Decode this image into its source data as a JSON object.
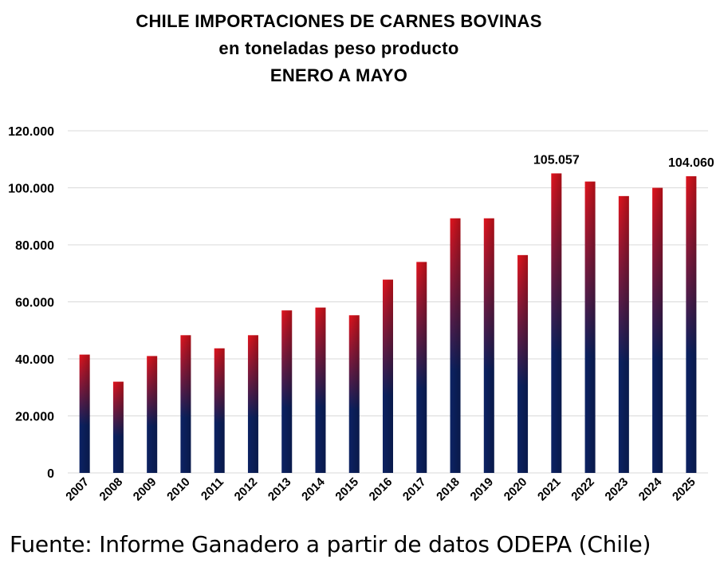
{
  "chart_data": {
    "type": "bar",
    "title": "CHILE IMPORTACIONES DE CARNES BOVINAS",
    "subtitle": "en toneladas peso producto",
    "period": "ENERO A MAYO",
    "categories": [
      "2007",
      "2008",
      "2009",
      "2010",
      "2011",
      "2012",
      "2013",
      "2014",
      "2015",
      "2016",
      "2017",
      "2018",
      "2019",
      "2020",
      "2021",
      "2022",
      "2023",
      "2024",
      "2025"
    ],
    "series": [
      {
        "values": [
          41500,
          32000,
          41000,
          48300,
          43700,
          48300,
          57000,
          58000,
          55300,
          67800,
          74000,
          89300,
          89300,
          76400,
          105057,
          102200,
          97100,
          100000,
          104060
        ]
      }
    ],
    "data_labels": [
      {
        "category": "2021",
        "text": "105.057"
      },
      {
        "category": "2025",
        "text": "104.060"
      }
    ],
    "ylim": [
      0,
      120000
    ],
    "yticks": [
      0,
      20000,
      40000,
      60000,
      80000,
      100000,
      120000
    ],
    "ytick_labels": [
      "0",
      "20.000",
      "40.000",
      "60.000",
      "80.000",
      "100.000",
      "120.000"
    ],
    "grid": true,
    "colors": {
      "bar_top": "#e0141e",
      "bar_bottom": "#0c2263",
      "grid": "#d9d9d9",
      "text": "#000000"
    }
  },
  "source": "Fuente: Informe Ganadero a partir de datos ODEPA (Chile)"
}
